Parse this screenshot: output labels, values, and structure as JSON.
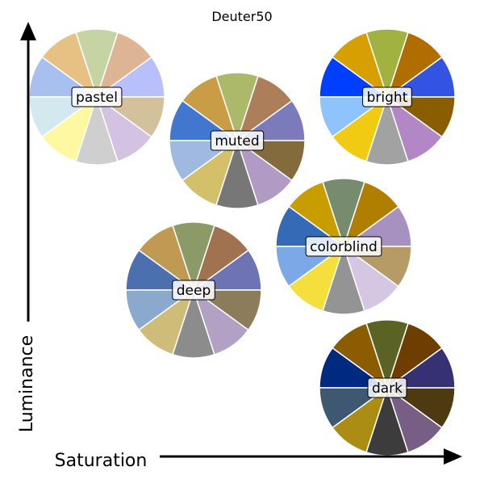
{
  "chart_data": {
    "type": "pie",
    "title": "Deuter50",
    "xlabel": "Saturation",
    "ylabel": "Luminance",
    "palettes": [
      {
        "name": "pastel",
        "colors": [
          "#b9bffa",
          "#ddb494",
          "#c6d4a3",
          "#e7c183",
          "#a8c0f0",
          "#d4e8f0",
          "#fff8a2",
          "#cfcfcf",
          "#d4c2e2",
          "#d3c19b"
        ]
      },
      {
        "name": "muted",
        "colors": [
          "#7b7abb",
          "#ac7e5a",
          "#adb96a",
          "#c99d45",
          "#4277cf",
          "#9fb9e0",
          "#d4bf6a",
          "#777777",
          "#b19ac3",
          "#836b3e"
        ]
      },
      {
        "name": "bright",
        "colors": [
          "#3354e2",
          "#b06e00",
          "#a2b240",
          "#d79f00",
          "#003fff",
          "#8ec3fd",
          "#f0cb11",
          "#a2a2a2",
          "#b386c5",
          "#8a5e00"
        ]
      },
      {
        "name": "colorblind",
        "colors": [
          "#a791c1",
          "#b17f00",
          "#778b6e",
          "#c79d00",
          "#356ab7",
          "#7ca8e7",
          "#f4df3d",
          "#949494",
          "#d5c6e4",
          "#b79b66"
        ]
      },
      {
        "name": "deep",
        "colors": [
          "#6e73b4",
          "#a07250",
          "#8b9a67",
          "#c09953",
          "#4c6faf",
          "#8aa9cd",
          "#cdbd79",
          "#8c8c8c",
          "#b3a0c5",
          "#8b7d5b"
        ]
      },
      {
        "name": "dark",
        "colors": [
          "#353173",
          "#6d3e00",
          "#5a6323",
          "#8c5c00",
          "#002a80",
          "#3e5871",
          "#ac8d13",
          "#3c3c3c",
          "#785d84",
          "#4d3a10"
        ]
      }
    ]
  }
}
